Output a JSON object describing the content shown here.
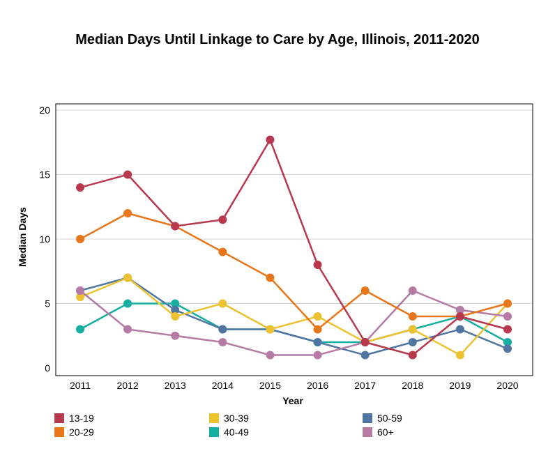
{
  "chart_data": {
    "type": "line",
    "title": "Median Days Until Linkage to Care by Age, Illinois, 2011-2020",
    "xlabel": "Year",
    "ylabel": "Median Days",
    "ylim": [
      0,
      20
    ],
    "yticks": [
      0,
      5,
      10,
      15,
      20
    ],
    "grid": "horizontal",
    "legend_position": "bottom",
    "x": [
      "2011",
      "2012",
      "2013",
      "2014",
      "2015",
      "2016",
      "2017",
      "2018",
      "2019",
      "2020"
    ],
    "series": [
      {
        "name": "13-19",
        "color": "#b8394e",
        "values": [
          14,
          15,
          11,
          11.5,
          17.7,
          8,
          2,
          1,
          4,
          3
        ]
      },
      {
        "name": "20-29",
        "color": "#e8761a",
        "values": [
          10,
          12,
          11,
          9,
          7,
          3,
          6,
          4,
          4,
          5
        ]
      },
      {
        "name": "30-39",
        "color": "#ecc232",
        "values": [
          5.5,
          7,
          4,
          5,
          3,
          4,
          2,
          3,
          1,
          5
        ]
      },
      {
        "name": "40-49",
        "color": "#14ada0",
        "values": [
          3,
          5,
          5,
          3,
          3,
          2,
          2,
          3,
          4,
          2
        ]
      },
      {
        "name": "50-59",
        "color": "#4f76a1",
        "values": [
          6,
          7,
          4.5,
          3,
          3,
          2,
          1,
          2,
          3,
          1.5
        ]
      },
      {
        "name": "60+",
        "color": "#b57ba5",
        "values": [
          6,
          3,
          2.5,
          2,
          1,
          1,
          2,
          6,
          4.5,
          4
        ]
      }
    ],
    "draw_order": [
      "40-49",
      "50-59",
      "30-39",
      "60+",
      "20-29",
      "13-19"
    ]
  }
}
